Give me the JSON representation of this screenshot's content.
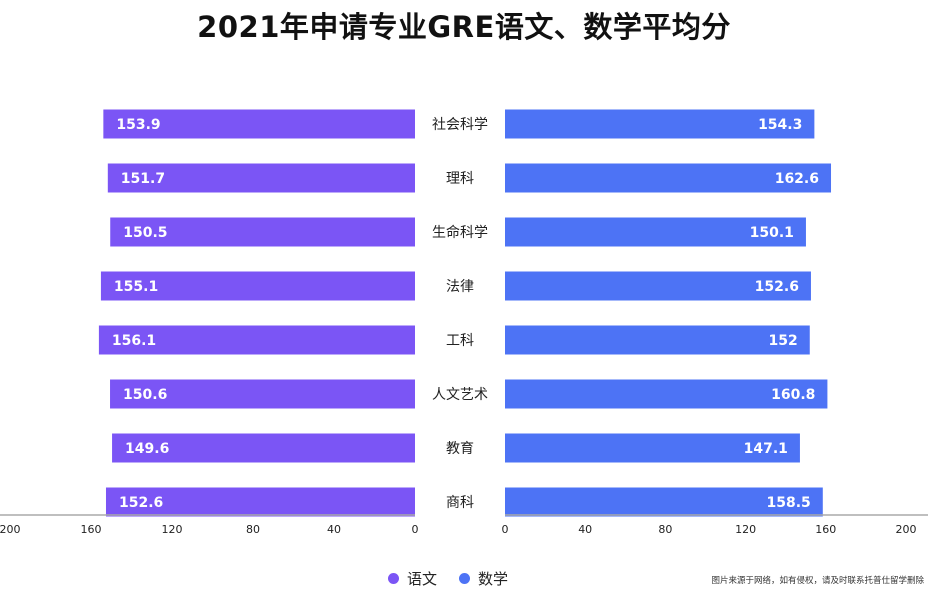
{
  "title": "2021年申请专业GRE语文、数学平均分",
  "colors": {
    "verbal": "#7b55f5",
    "quant": "#4d73f5",
    "axis": "#aaaaaa"
  },
  "legend": {
    "verbal_label": "语文",
    "quant_label": "数学"
  },
  "source_note": "图片来源于网络，如有侵权，请及时联系托普仕留学删除",
  "chart_data": {
    "type": "bar",
    "orientation": "horizontal-butterfly",
    "categories": [
      "社会科学",
      "理科",
      "生命科学",
      "法律",
      "工科",
      "人文艺术",
      "教育",
      "商科"
    ],
    "series": [
      {
        "name": "语文",
        "side": "left",
        "values": [
          153.9,
          151.7,
          150.5,
          155.1,
          156.1,
          150.6,
          149.6,
          152.6
        ]
      },
      {
        "name": "数学",
        "side": "right",
        "values": [
          154.3,
          162.6,
          150.1,
          152.6,
          152,
          160.8,
          147.1,
          158.5
        ]
      }
    ],
    "left_axis": {
      "ticks": [
        "200",
        "160",
        "120",
        "80",
        "40",
        "0"
      ],
      "range": [
        0,
        200
      ]
    },
    "right_axis": {
      "ticks": [
        "0",
        "40",
        "80",
        "120",
        "160",
        "200"
      ],
      "range": [
        0,
        200
      ]
    }
  }
}
